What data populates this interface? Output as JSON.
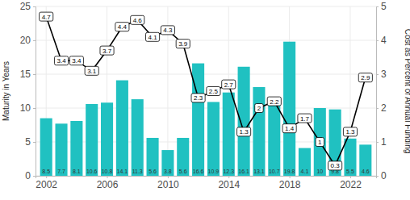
{
  "chart_data": {
    "type": "bar",
    "y_label": "Maturity in Years",
    "y2_label": "Cost as Percent of Annual Funding",
    "x": [
      2002,
      2003,
      2004,
      2005,
      2006,
      2007,
      2008,
      2009,
      2010,
      2011,
      2012,
      2013,
      2014,
      2015,
      2016,
      2017,
      2018,
      2019,
      2020,
      2021,
      2022,
      2023
    ],
    "xlim": [
      2001.3,
      2023.7
    ],
    "xticks": [
      2002,
      2006,
      2010,
      2014,
      2018,
      2022
    ],
    "ylim": [
      0,
      25
    ],
    "yticks": [
      0,
      5,
      10,
      15,
      20,
      25
    ],
    "y2lim": [
      0,
      5
    ],
    "y2ticks": [
      0,
      1,
      2,
      3,
      4,
      5
    ],
    "grid": true,
    "data_labels": true,
    "series": [
      {
        "type": "bar",
        "color": "#20c1c1",
        "values": [
          8.5,
          7.7,
          8.1,
          10.6,
          10.8,
          14.1,
          11.3,
          5.6,
          3.8,
          5.6,
          16.6,
          10.9,
          12.3,
          16.1,
          13.1,
          10.7,
          19.8,
          4.1,
          10,
          9.8,
          5.5,
          4.6
        ]
      },
      {
        "type": "line",
        "axis": "y2",
        "color": "#000000",
        "values": [
          4.7,
          3.4,
          3.4,
          3.1,
          3.7,
          4.4,
          4.6,
          4.1,
          4.3,
          3.9,
          2.3,
          2.5,
          2.7,
          1.3,
          2,
          2.2,
          1.4,
          1.7,
          1,
          0.3,
          1.3,
          2.9
        ]
      }
    ]
  }
}
